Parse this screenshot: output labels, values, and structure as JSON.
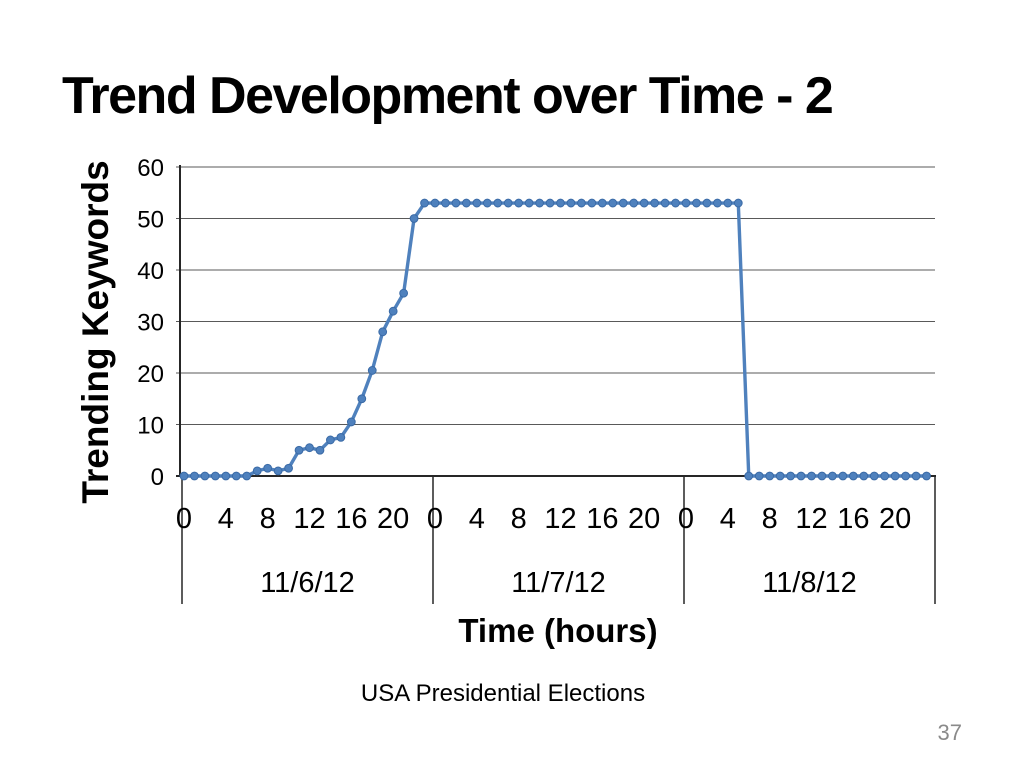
{
  "slide": {
    "title": "Trend Development over Time - 2",
    "page_number": "37"
  },
  "chart_data": {
    "type": "line",
    "title": "",
    "xlabel": "Time (hours)",
    "ylabel": "Trending Keywords",
    "caption": "USA Presidential Elections",
    "ylim": [
      0,
      60
    ],
    "y_ticks": [
      0,
      10,
      20,
      30,
      40,
      50,
      60
    ],
    "grid": "horizontal",
    "legend_position": "none",
    "day_groups": [
      "11/6/12",
      "11/7/12",
      "11/8/12"
    ],
    "hour_ticks_per_day": [
      0,
      4,
      8,
      12,
      16,
      20
    ],
    "x_unit": "hours, one data point per hour over three days",
    "series": [
      {
        "name": "USA Presidential Elections",
        "color": "#4f81bd",
        "marker_edge_color": "#3a6aa6",
        "values": [
          0,
          0,
          0,
          0,
          0,
          0,
          0,
          1,
          1.5,
          1,
          1.5,
          5,
          5.5,
          5,
          7,
          7.5,
          10.5,
          15,
          20.5,
          28,
          32,
          35.5,
          50,
          53,
          53,
          53,
          53,
          53,
          53,
          53,
          53,
          53,
          53,
          53,
          53,
          53,
          53,
          53,
          53,
          53,
          53,
          53,
          53,
          53,
          53,
          53,
          53,
          53,
          53,
          53,
          53,
          53,
          53,
          53,
          0,
          0,
          0,
          0,
          0,
          0,
          0,
          0,
          0,
          0,
          0,
          0,
          0,
          0,
          0,
          0,
          0,
          0
        ]
      }
    ],
    "colors": {
      "grid": "#595959",
      "axis": "#262626",
      "text": "#000000",
      "page_number": "#8a8a8a"
    }
  }
}
